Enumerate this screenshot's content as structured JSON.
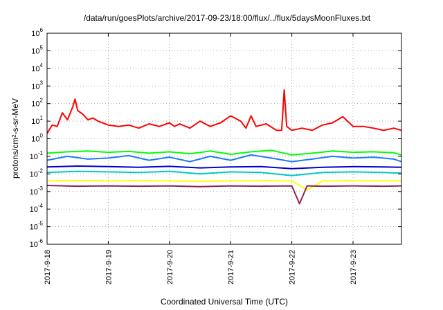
{
  "chart_data": {
    "type": "line",
    "title": "/data/run/goesPlots/archive/2017-09-23/18:00/flux/../flux/5daysMoonFluxes.txt",
    "xlabel": "Coordinated Universal Time (UTC)",
    "ylabel": "protons/cm²-s-sr-MeV",
    "y_scale": "log",
    "ylim": [
      1e-06,
      1000000.0
    ],
    "xlim": [
      "2017-09-18 00:00",
      "2017-09-23 19:00"
    ],
    "grid": true,
    "x_ticks": [
      "2017-9-18",
      "2017-9-19",
      "2017-9-20",
      "2017-9-21",
      "2017-9-22",
      "2017-9-23"
    ],
    "y_ticks": [
      {
        "value": 1e-06,
        "mantissa": "10",
        "exp": "-6"
      },
      {
        "value": 1e-05,
        "mantissa": "10",
        "exp": "-5"
      },
      {
        "value": 0.0001,
        "mantissa": "10",
        "exp": "-4"
      },
      {
        "value": 0.001,
        "mantissa": "10",
        "exp": "-3"
      },
      {
        "value": 0.01,
        "mantissa": "10",
        "exp": "-2"
      },
      {
        "value": 0.1,
        "mantissa": "10",
        "exp": "-1"
      },
      {
        "value": 1,
        "mantissa": "10",
        "exp": "0"
      },
      {
        "value": 10,
        "mantissa": "10",
        "exp": "1"
      },
      {
        "value": 100,
        "mantissa": "10",
        "exp": "2"
      },
      {
        "value": 1000,
        "mantissa": "10",
        "exp": "3"
      },
      {
        "value": 10000,
        "mantissa": "10",
        "exp": "4"
      },
      {
        "value": 100000,
        "mantissa": "10",
        "exp": "5"
      },
      {
        "value": 1000000,
        "mantissa": "10",
        "exp": "6"
      }
    ],
    "series": [
      {
        "color": "#ff0000",
        "x": [
          "2017-09-18 00:00",
          "2017-09-18 02:00",
          "2017-09-18 04:00",
          "2017-09-18 06:00",
          "2017-09-18 08:00",
          "2017-09-18 10:00",
          "2017-09-18 11:00",
          "2017-09-18 12:00",
          "2017-09-18 14:00",
          "2017-09-18 16:00",
          "2017-09-18 18:00",
          "2017-09-18 20:00",
          "2017-09-19 00:00",
          "2017-09-19 04:00",
          "2017-09-19 08:00",
          "2017-09-19 12:00",
          "2017-09-19 16:00",
          "2017-09-19 20:00",
          "2017-09-20 00:00",
          "2017-09-20 02:00",
          "2017-09-20 04:00",
          "2017-09-20 08:00",
          "2017-09-20 12:00",
          "2017-09-20 16:00",
          "2017-09-20 20:00",
          "2017-09-21 00:00",
          "2017-09-21 04:00",
          "2017-09-21 06:00",
          "2017-09-21 08:00",
          "2017-09-21 10:00",
          "2017-09-21 14:00",
          "2017-09-21 18:00",
          "2017-09-21 20:00",
          "2017-09-21 21:00",
          "2017-09-21 22:00",
          "2017-09-22 00:00",
          "2017-09-22 04:00",
          "2017-09-22 08:00",
          "2017-09-22 12:00",
          "2017-09-22 16:00",
          "2017-09-22 20:00",
          "2017-09-23 00:00",
          "2017-09-23 04:00",
          "2017-09-23 08:00",
          "2017-09-23 12:00",
          "2017-09-23 16:00",
          "2017-09-23 19:00"
        ],
        "values": [
          2,
          6,
          5,
          30,
          12,
          60,
          180,
          40,
          25,
          12,
          15,
          10,
          6,
          5,
          6,
          4,
          7,
          5,
          8,
          5,
          7,
          4,
          10,
          5,
          8,
          20,
          10,
          4,
          20,
          5,
          7,
          3,
          3,
          600,
          5,
          3,
          4,
          3,
          6,
          8,
          18,
          5,
          5,
          4,
          3,
          4,
          3
        ]
      },
      {
        "color": "#00ff00",
        "x": [
          "2017-09-18 00:00",
          "2017-09-18 08:00",
          "2017-09-18 16:00",
          "2017-09-19 00:00",
          "2017-09-19 08:00",
          "2017-09-19 16:00",
          "2017-09-20 00:00",
          "2017-09-20 08:00",
          "2017-09-20 16:00",
          "2017-09-21 00:00",
          "2017-09-21 08:00",
          "2017-09-21 16:00",
          "2017-09-22 00:00",
          "2017-09-22 08:00",
          "2017-09-22 16:00",
          "2017-09-23 00:00",
          "2017-09-23 08:00",
          "2017-09-23 16:00",
          "2017-09-23 19:00"
        ],
        "values": [
          0.15,
          0.18,
          0.2,
          0.17,
          0.19,
          0.15,
          0.18,
          0.14,
          0.2,
          0.13,
          0.18,
          0.22,
          0.12,
          0.15,
          0.2,
          0.17,
          0.18,
          0.16,
          0.12
        ]
      },
      {
        "color": "#00c8c8",
        "x": [
          "2017-09-18 00:00",
          "2017-09-18 12:00",
          "2017-09-19 00:00",
          "2017-09-19 12:00",
          "2017-09-20 00:00",
          "2017-09-20 12:00",
          "2017-09-21 00:00",
          "2017-09-21 12:00",
          "2017-09-22 00:00",
          "2017-09-22 12:00",
          "2017-09-23 00:00",
          "2017-09-23 12:00",
          "2017-09-23 19:00"
        ],
        "values": [
          0.012,
          0.014,
          0.013,
          0.012,
          0.014,
          0.01,
          0.013,
          0.012,
          0.008,
          0.012,
          0.013,
          0.012,
          0.011
        ]
      },
      {
        "color": "#1e78ff",
        "x": [
          "2017-09-18 00:00",
          "2017-09-18 08:00",
          "2017-09-18 16:00",
          "2017-09-19 00:00",
          "2017-09-19 08:00",
          "2017-09-19 16:00",
          "2017-09-20 00:00",
          "2017-09-20 08:00",
          "2017-09-20 16:00",
          "2017-09-21 00:00",
          "2017-09-21 08:00",
          "2017-09-21 16:00",
          "2017-09-22 00:00",
          "2017-09-22 08:00",
          "2017-09-22 16:00",
          "2017-09-23 00:00",
          "2017-09-23 08:00",
          "2017-09-23 16:00",
          "2017-09-23 19:00"
        ],
        "values": [
          0.06,
          0.1,
          0.07,
          0.08,
          0.11,
          0.06,
          0.09,
          0.05,
          0.1,
          0.06,
          0.12,
          0.08,
          0.05,
          0.07,
          0.1,
          0.08,
          0.09,
          0.07,
          0.05
        ]
      },
      {
        "color": "#0000cc",
        "x": [
          "2017-09-18 00:00",
          "2017-09-18 12:00",
          "2017-09-19 00:00",
          "2017-09-19 12:00",
          "2017-09-20 00:00",
          "2017-09-20 12:00",
          "2017-09-21 00:00",
          "2017-09-21 12:00",
          "2017-09-22 00:00",
          "2017-09-22 12:00",
          "2017-09-23 00:00",
          "2017-09-23 12:00",
          "2017-09-23 19:00"
        ],
        "values": [
          0.025,
          0.028,
          0.026,
          0.024,
          0.027,
          0.022,
          0.025,
          0.026,
          0.02,
          0.024,
          0.026,
          0.025,
          0.024
        ]
      },
      {
        "color": "#ffff00",
        "x": [
          "2017-09-18 00:00",
          "2017-09-18 12:00",
          "2017-09-19 00:00",
          "2017-09-19 12:00",
          "2017-09-20 00:00",
          "2017-09-20 12:00",
          "2017-09-21 00:00",
          "2017-09-21 12:00",
          "2017-09-22 00:00",
          "2017-09-22 06:00",
          "2017-09-22 12:00",
          "2017-09-23 00:00",
          "2017-09-23 12:00",
          "2017-09-23 19:00"
        ],
        "values": [
          0.004,
          0.0042,
          0.004,
          0.0041,
          0.004,
          0.0039,
          0.004,
          0.0041,
          0.004,
          0.0012,
          0.004,
          0.0041,
          0.004,
          0.004
        ]
      },
      {
        "color": "#8b2252",
        "x": [
          "2017-09-18 00:00",
          "2017-09-18 12:00",
          "2017-09-19 00:00",
          "2017-09-19 12:00",
          "2017-09-20 00:00",
          "2017-09-20 12:00",
          "2017-09-21 00:00",
          "2017-09-21 12:00",
          "2017-09-22 00:00",
          "2017-09-22 03:00",
          "2017-09-22 06:00",
          "2017-09-22 12:00",
          "2017-09-23 00:00",
          "2017-09-23 12:00",
          "2017-09-23 19:00"
        ],
        "values": [
          0.0022,
          0.002,
          0.0021,
          0.002,
          0.0021,
          0.0019,
          0.0021,
          0.002,
          0.0021,
          0.0002,
          0.0021,
          0.002,
          0.0021,
          0.002,
          0.0021
        ]
      }
    ]
  }
}
